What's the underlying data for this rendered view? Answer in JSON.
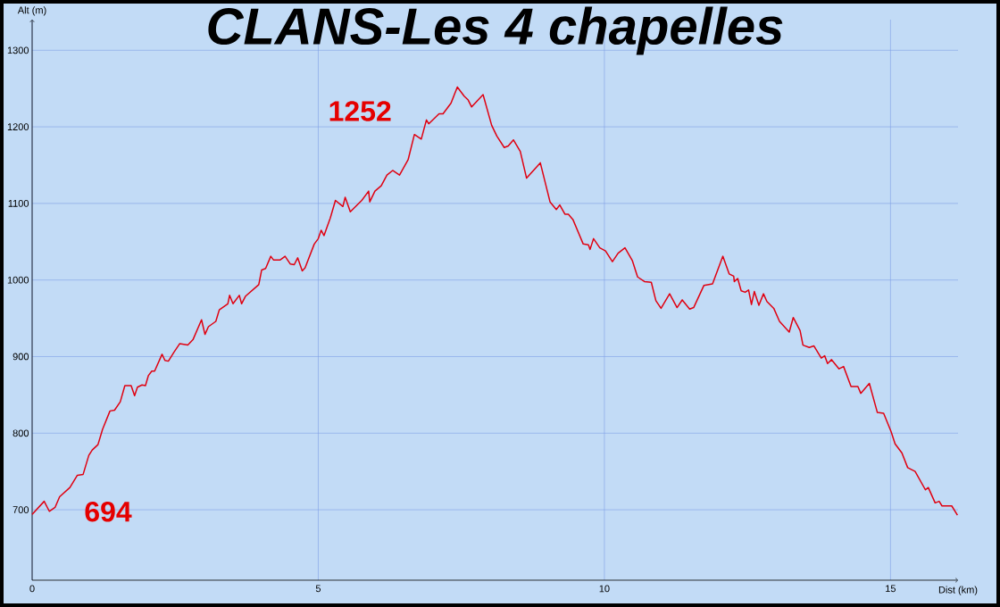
{
  "chart_data": {
    "type": "line",
    "title": "CLANS-Les 4 chapelles",
    "xlabel": "Dist (km)",
    "ylabel": "Alt (m)",
    "xlim": [
      0,
      16.18
    ],
    "ylim": [
      608,
      1340
    ],
    "xticks": [
      0,
      5,
      10,
      15
    ],
    "yticks": [
      700,
      800,
      900,
      1000,
      1100,
      1200,
      1300
    ],
    "grid": true,
    "annotations": [
      {
        "text": "694",
        "x": 0,
        "y": 694
      },
      {
        "text": "1252",
        "x": 7.43,
        "y": 1252
      }
    ],
    "series": [
      {
        "color": "#e00010",
        "x": [
          0,
          0.21,
          0.3,
          0.4,
          0.48,
          0.66,
          0.79,
          0.89,
          0.99,
          1.05,
          1.15,
          1.23,
          1.36,
          1.44,
          1.54,
          1.62,
          1.73,
          1.79,
          1.84,
          1.92,
          1.98,
          2.03,
          2.09,
          2.14,
          2.27,
          2.32,
          2.38,
          2.48,
          2.58,
          2.72,
          2.81,
          2.96,
          3.02,
          3.08,
          3.21,
          3.27,
          3.42,
          3.45,
          3.51,
          3.62,
          3.66,
          3.73,
          3.96,
          4.01,
          4.08,
          4.17,
          4.22,
          4.33,
          4.42,
          4.51,
          4.58,
          4.64,
          4.72,
          4.77,
          4.93,
          5.0,
          5.05,
          5.1,
          5.21,
          5.3,
          5.43,
          5.47,
          5.56,
          5.76,
          5.88,
          5.9,
          5.99,
          6.1,
          6.2,
          6.3,
          6.42,
          6.57,
          6.68,
          6.8,
          6.89,
          6.93,
          7.11,
          7.18,
          7.32,
          7.43,
          7.55,
          7.62,
          7.68,
          7.88,
          8.03,
          8.12,
          8.25,
          8.32,
          8.41,
          8.53,
          8.64,
          8.76,
          8.88,
          9.05,
          9.16,
          9.22,
          9.31,
          9.37,
          9.45,
          9.63,
          9.72,
          9.75,
          9.81,
          9.92,
          10.02,
          10.14,
          10.24,
          10.36,
          10.49,
          10.58,
          10.7,
          10.82,
          10.9,
          10.99,
          11.14,
          11.27,
          11.36,
          11.49,
          11.56,
          11.74,
          11.89,
          12.07,
          12.18,
          12.26,
          12.27,
          12.33,
          12.39,
          12.46,
          12.52,
          12.57,
          12.62,
          12.7,
          12.78,
          12.84,
          12.96,
          13.06,
          13.23,
          13.3,
          13.42,
          13.47,
          13.58,
          13.66,
          13.79,
          13.85,
          13.9,
          13.97,
          14.1,
          14.18,
          14.31,
          14.43,
          14.48,
          14.63,
          14.77,
          14.88,
          15.01,
          15.08,
          15.2,
          15.3,
          15.43,
          15.61,
          15.66,
          15.78,
          15.85,
          15.9,
          16.07,
          16.17
        ],
        "values": [
          694,
          711,
          698,
          703,
          717,
          729,
          745,
          746,
          771,
          778,
          785,
          805,
          829,
          830,
          841,
          862,
          862,
          849,
          860,
          863,
          862,
          875,
          881,
          881,
          903,
          895,
          894,
          906,
          917,
          915,
          922,
          948,
          929,
          939,
          946,
          961,
          969,
          980,
          969,
          980,
          969,
          979,
          994,
          1013,
          1015,
          1031,
          1026,
          1026,
          1031,
          1021,
          1020,
          1029,
          1012,
          1016,
          1047,
          1054,
          1065,
          1058,
          1081,
          1104,
          1096,
          1108,
          1089,
          1104,
          1116,
          1102,
          1116,
          1123,
          1137,
          1143,
          1137,
          1157,
          1190,
          1184,
          1209,
          1204,
          1217,
          1217,
          1231,
          1252,
          1240,
          1235,
          1226,
          1242,
          1202,
          1188,
          1173,
          1175,
          1183,
          1168,
          1133,
          1143,
          1153,
          1102,
          1092,
          1098,
          1086,
          1086,
          1079,
          1047,
          1046,
          1040,
          1054,
          1042,
          1038,
          1024,
          1035,
          1042,
          1025,
          1004,
          998,
          997,
          973,
          963,
          982,
          964,
          974,
          962,
          964,
          993,
          995,
          1031,
          1008,
          1005,
          998,
          1002,
          986,
          984,
          987,
          968,
          985,
          967,
          982,
          972,
          963,
          946,
          932,
          951,
          934,
          915,
          912,
          914,
          898,
          901,
          891,
          896,
          884,
          887,
          861,
          861,
          852,
          865,
          827,
          826,
          802,
          786,
          774,
          755,
          750,
          726,
          729,
          709,
          711,
          705,
          705,
          693
        ]
      }
    ]
  }
}
